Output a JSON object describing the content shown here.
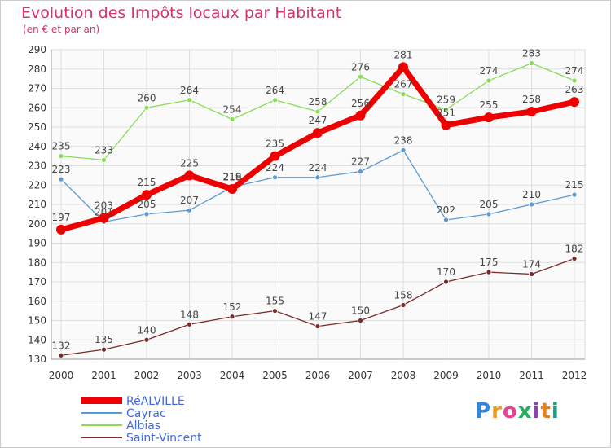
{
  "title": "Evolution des Impôts locaux par Habitant",
  "subtitle": "(en € et par an)",
  "logo": {
    "text": "Proxiti",
    "colors": [
      "#2e86de",
      "#f39c12",
      "#e84393",
      "#27ae60",
      "#8e44ad",
      "#e67e22",
      "#16a085"
    ]
  },
  "chart_data": {
    "type": "line",
    "x": [
      2000,
      2001,
      2002,
      2003,
      2004,
      2005,
      2006,
      2007,
      2008,
      2009,
      2010,
      2011,
      2012
    ],
    "ylim": [
      130,
      290
    ],
    "yticks": [
      130,
      140,
      150,
      160,
      170,
      180,
      190,
      200,
      210,
      220,
      230,
      240,
      250,
      260,
      270,
      280,
      290
    ],
    "grid": true,
    "legend_position": "bottom-left",
    "series": [
      {
        "name": "RéALVILLE",
        "color": "#ee0000",
        "values": [
          197,
          203,
          215,
          225,
          218,
          235,
          247,
          256,
          281,
          251,
          255,
          258,
          263
        ]
      },
      {
        "name": "Cayrac",
        "color": "#5b9bd5",
        "values": [
          223,
          201,
          205,
          207,
          219,
          224,
          224,
          227,
          238,
          202,
          205,
          210,
          215
        ]
      },
      {
        "name": "Albias",
        "color": "#88dd55",
        "values": [
          235,
          233,
          260,
          264,
          254,
          264,
          258,
          276,
          267,
          259,
          274,
          283,
          274
        ]
      },
      {
        "name": "Saint-Vincent",
        "color": "#7a2a2a",
        "values": [
          132,
          135,
          140,
          148,
          152,
          155,
          147,
          150,
          158,
          170,
          175,
          174,
          182
        ]
      }
    ]
  }
}
